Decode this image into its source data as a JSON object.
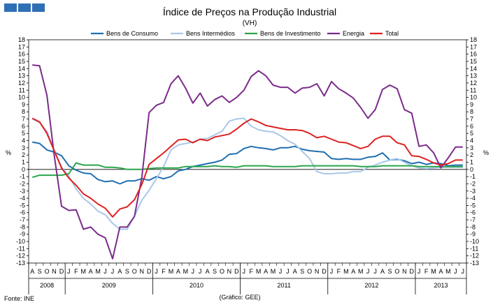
{
  "branding": {
    "logo_color": "#2f6fb5"
  },
  "chart_data": {
    "type": "line",
    "title": "Índice de Preços na Produção Industrial",
    "subtitle": "(VH)",
    "ylabel_left": "%",
    "ylabel_right": "%",
    "ylim": [
      -13,
      18
    ],
    "yticks": [
      18,
      17,
      16,
      15,
      14,
      13,
      12,
      11,
      10,
      9,
      8,
      7,
      6,
      5,
      4,
      3,
      2,
      1,
      0,
      -1,
      -2,
      -3,
      -4,
      -5,
      -6,
      -7,
      -8,
      -9,
      -10,
      -11,
      -12,
      -13
    ],
    "x": [
      "A",
      "S",
      "O",
      "N",
      "D",
      "J",
      "F",
      "M",
      "A",
      "M",
      "J",
      "J",
      "A",
      "S",
      "O",
      "N",
      "D",
      "J",
      "F",
      "M",
      "A",
      "M",
      "J",
      "J",
      "A",
      "S",
      "O",
      "N",
      "D",
      "J",
      "F",
      "M",
      "A",
      "M",
      "J",
      "J",
      "A",
      "S",
      "O",
      "N",
      "D",
      "J",
      "F",
      "M",
      "A",
      "M",
      "J",
      "J",
      "A",
      "S",
      "O",
      "N",
      "D",
      "J",
      "F",
      "M",
      "A",
      "M",
      "J",
      "J"
    ],
    "years": [
      {
        "label": "2008",
        "start": 0,
        "end": 5
      },
      {
        "label": "2009",
        "start": 5,
        "end": 17
      },
      {
        "label": "2010",
        "start": 17,
        "end": 29
      },
      {
        "label": "2011",
        "start": 29,
        "end": 41
      },
      {
        "label": "2012",
        "start": 41,
        "end": 53
      },
      {
        "label": "2013",
        "start": 53,
        "end": 60
      }
    ],
    "series": [
      {
        "name": "Bens de Consumo",
        "color": "#1f6fb2",
        "values": [
          3.8,
          3.6,
          2.7,
          2.4,
          1.9,
          0.5,
          -0.1,
          -0.5,
          -0.6,
          -1.4,
          -1.7,
          -1.6,
          -2.0,
          -1.6,
          -1.6,
          -1.3,
          -1.5,
          -1.0,
          -1.3,
          -1.0,
          -0.2,
          0.0,
          0.4,
          0.6,
          0.8,
          1.0,
          1.3,
          2.1,
          2.2,
          2.9,
          3.2,
          3.0,
          2.9,
          2.7,
          3.0,
          3.0,
          3.2,
          2.8,
          2.6,
          2.5,
          2.4,
          1.5,
          1.4,
          1.5,
          1.4,
          1.4,
          1.7,
          1.8,
          2.3,
          1.3,
          1.4,
          1.2,
          0.8,
          1.0,
          0.7,
          0.9,
          0.8,
          0.5,
          0.6,
          0.6
        ]
      },
      {
        "name": "Bens Intermédios",
        "color": "#a9c8e8",
        "values": [
          7.0,
          6.5,
          5.3,
          2.7,
          0.3,
          -0.9,
          -2.7,
          -4.0,
          -4.8,
          -5.8,
          -6.3,
          -7.5,
          -8.3,
          -8.3,
          -6.5,
          -4.3,
          -2.9,
          -1.3,
          0.4,
          2.7,
          3.4,
          3.6,
          3.8,
          4.2,
          4.3,
          4.8,
          5.3,
          6.7,
          7.0,
          7.1,
          6.0,
          5.5,
          5.3,
          5.2,
          4.7,
          4.0,
          3.5,
          2.5,
          1.5,
          -0.3,
          -0.6,
          -0.6,
          -0.5,
          -0.5,
          -0.3,
          -0.3,
          0.3,
          0.6,
          1.0,
          1.3,
          1.5,
          1.0,
          0.5,
          0.2,
          0.1,
          0.2,
          0.3,
          0.3,
          0.3,
          0.3
        ]
      },
      {
        "name": "Bens de Investimento",
        "color": "#2aa54c",
        "values": [
          -1.1,
          -0.8,
          -0.8,
          -0.8,
          -0.8,
          -0.6,
          0.9,
          0.6,
          0.6,
          0.6,
          0.3,
          0.3,
          0.2,
          0.0,
          0.0,
          0.0,
          0.1,
          0.2,
          0.2,
          0.2,
          0.2,
          0.4,
          0.4,
          0.4,
          0.4,
          0.5,
          0.4,
          0.4,
          0.3,
          0.5,
          0.5,
          0.5,
          0.5,
          0.4,
          0.4,
          0.4,
          0.4,
          0.5,
          0.5,
          0.5,
          0.5,
          0.5,
          0.5,
          0.5,
          0.5,
          0.4,
          0.4,
          0.4,
          0.5,
          0.5,
          0.5,
          0.5,
          0.5,
          0.4,
          0.4,
          0.4,
          0.4,
          0.4,
          0.4,
          0.4
        ]
      },
      {
        "name": "Energia",
        "color": "#7b2b8a",
        "values": [
          14.5,
          14.4,
          10.3,
          2.0,
          -5.1,
          -5.7,
          -5.6,
          -8.3,
          -8.0,
          -9.0,
          -9.5,
          -12.4,
          -8.0,
          -8.0,
          -6.5,
          -1.2,
          7.9,
          8.9,
          9.3,
          11.9,
          13.0,
          11.3,
          9.2,
          10.6,
          8.8,
          9.7,
          10.2,
          9.3,
          10.0,
          11.0,
          12.9,
          13.7,
          13.0,
          11.7,
          11.4,
          11.4,
          10.6,
          11.3,
          11.4,
          11.9,
          10.2,
          12.2,
          11.2,
          10.6,
          9.9,
          8.6,
          7.1,
          8.3,
          11.1,
          11.7,
          11.2,
          8.3,
          7.8,
          3.2,
          3.4,
          2.3,
          0.2,
          1.6,
          3.1,
          3.1
        ]
      },
      {
        "name": "Total",
        "color": "#dd2222",
        "values": [
          7.1,
          6.6,
          5.0,
          2.6,
          0.2,
          -1.2,
          -2.2,
          -3.4,
          -4.0,
          -4.8,
          -5.4,
          -6.6,
          -5.5,
          -5.2,
          -4.2,
          -2.1,
          0.7,
          1.5,
          2.3,
          3.2,
          4.1,
          4.2,
          3.7,
          4.2,
          4.0,
          4.5,
          4.7,
          4.9,
          5.6,
          6.4,
          7.0,
          6.6,
          6.1,
          5.9,
          5.7,
          5.5,
          5.5,
          5.4,
          5.0,
          4.4,
          4.6,
          4.2,
          3.8,
          3.7,
          3.3,
          2.9,
          3.2,
          4.2,
          4.6,
          4.6,
          3.7,
          3.4,
          1.9,
          1.8,
          1.4,
          0.9,
          0.6,
          0.8,
          1.3,
          1.3
        ]
      }
    ],
    "source": "Fonte: INE",
    "credit": "(Gráfico: GEE)"
  }
}
